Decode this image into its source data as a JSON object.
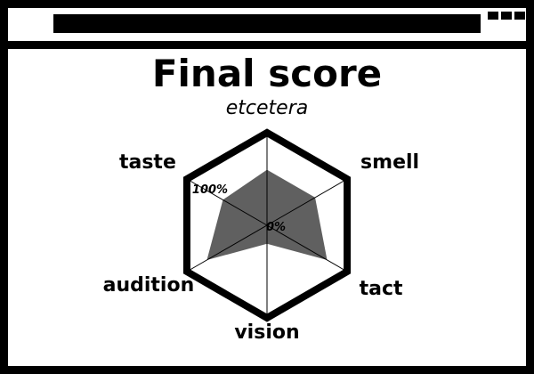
{
  "window": {
    "titlebar_buttons": [
      "window-button",
      "window-button",
      "window-button"
    ]
  },
  "page": {
    "title": "Final score"
  },
  "chart_data": {
    "type": "radar",
    "title": "Final score",
    "axes": [
      "etcetera",
      "smell",
      "tact",
      "vision",
      "audition",
      "taste"
    ],
    "axis_label_styles": [
      "italic",
      "bold",
      "bold",
      "bold",
      "bold",
      "bold"
    ],
    "scale_labels": {
      "max": "100%",
      "min": "0%"
    },
    "range": [
      0,
      100
    ],
    "series": [
      {
        "values": [
          60,
          60,
          75,
          20,
          75,
          55
        ]
      }
    ],
    "colors": {
      "fill": "#606060",
      "outline": "#000000",
      "spokes": "#000000"
    }
  }
}
